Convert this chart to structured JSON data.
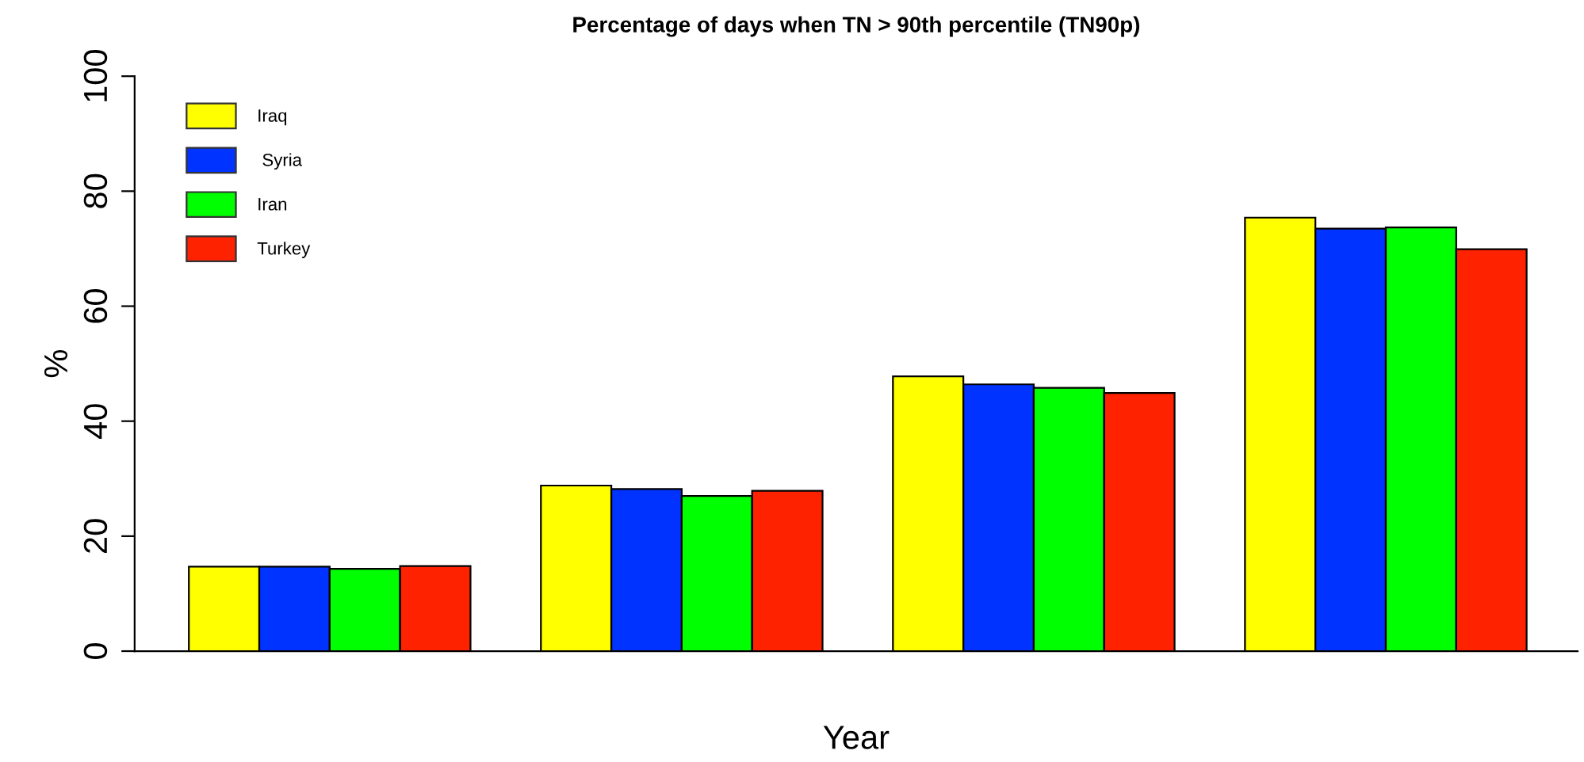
{
  "chart_data": {
    "type": "bar",
    "title": "Percentage of days when TN > 90th percentile (TN90p)",
    "xlabel": "Year",
    "ylabel": "%",
    "categories": [
      null,
      null,
      null,
      null
    ],
    "series": [
      {
        "name": "Iraq",
        "color": "#ffff00",
        "values": [
          14.7,
          28.8,
          47.8,
          75.4
        ]
      },
      {
        "name": " Syria",
        "color": "#0033ff",
        "values": [
          14.7,
          28.2,
          46.4,
          73.5
        ]
      },
      {
        "name": "Iran",
        "color": "#00ff00",
        "values": [
          14.3,
          27.0,
          45.8,
          73.7
        ]
      },
      {
        "name": "Turkey",
        "color": "#ff2200",
        "values": [
          14.8,
          27.9,
          44.9,
          69.9
        ]
      }
    ],
    "ylim": [
      0,
      100
    ],
    "yticks": [
      0,
      20,
      40,
      60,
      80,
      100
    ],
    "grid": false,
    "legend": "top left"
  }
}
